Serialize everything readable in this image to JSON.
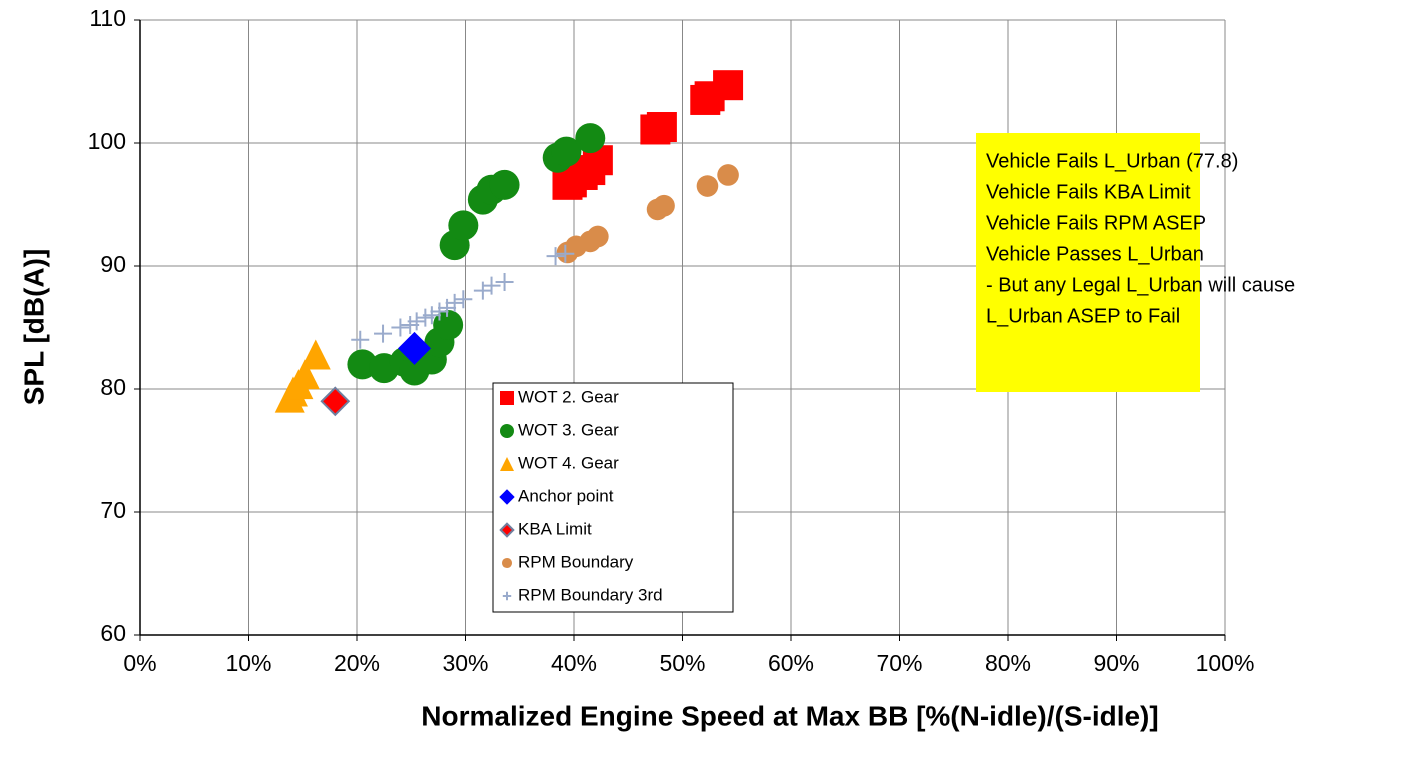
{
  "chart_data": {
    "type": "scatter",
    "xlabel": "Normalized Engine Speed at Max BB [%(N-idle)/(S-idle)]",
    "ylabel": "SPL [dB(A)]",
    "xlim": [
      0,
      100
    ],
    "ylim": [
      60,
      110
    ],
    "xticks": [
      {
        "value": 0,
        "label": "0%"
      },
      {
        "value": 10,
        "label": "10%"
      },
      {
        "value": 20,
        "label": "20%"
      },
      {
        "value": 30,
        "label": "30%"
      },
      {
        "value": 40,
        "label": "40%"
      },
      {
        "value": 50,
        "label": "50%"
      },
      {
        "value": 60,
        "label": "60%"
      },
      {
        "value": 70,
        "label": "70%"
      },
      {
        "value": 80,
        "label": "80%"
      },
      {
        "value": 90,
        "label": "90%"
      },
      {
        "value": 100,
        "label": "100%"
      }
    ],
    "yticks": [
      60,
      70,
      80,
      90,
      100,
      110
    ],
    "grid": true,
    "annotation": [
      "Vehicle Fails L_Urban (77.8)",
      "Vehicle Fails KBA Limit",
      "Vehicle Fails RPM ASEP",
      "Vehicle Passes L_Urban",
      "- But any Legal L_Urban will cause",
      "L_Urban ASEP to Fail"
    ],
    "series": [
      {
        "name": "WOT 2. Gear",
        "color": "#ff0000",
        "marker": "square",
        "x": [
          39.4,
          39.8,
          40.8,
          41.5,
          42.2,
          47.5,
          48.1,
          52.1,
          52.5,
          54.2
        ],
        "values": [
          96.6,
          96.8,
          97.4,
          97.8,
          98.6,
          101.1,
          101.3,
          103.5,
          103.8,
          104.7
        ]
      },
      {
        "name": "WOT 3. Gear",
        "color": "#138a13",
        "marker": "circle",
        "x": [
          20.5,
          22.5,
          24.4,
          25.3,
          26.9,
          27.6,
          28.4,
          29.0,
          29.8,
          31.6,
          32.4,
          33.6,
          38.5,
          39.3,
          41.5
        ],
        "values": [
          82.0,
          81.7,
          82.2,
          81.5,
          82.4,
          83.8,
          85.2,
          91.7,
          93.3,
          95.4,
          96.2,
          96.6,
          98.8,
          99.3,
          100.4
        ]
      },
      {
        "name": "WOT 4. Gear",
        "color": "#ffa500",
        "marker": "triangle",
        "x": [
          13.8,
          14.1,
          14.6,
          15.2,
          16.2
        ],
        "values": [
          79.3,
          79.8,
          80.4,
          81.2,
          82.8
        ]
      },
      {
        "name": "Anchor point",
        "color": "#0000ff",
        "marker": "diamond",
        "x": [
          25.3
        ],
        "values": [
          83.3
        ]
      },
      {
        "name": "KBA Limit",
        "color": "#ff0000",
        "marker": "diamond-outline",
        "x": [
          18.0
        ],
        "values": [
          79.0
        ]
      },
      {
        "name": "RPM Boundary",
        "color": "#d98c4a",
        "marker": "circle-small",
        "x": [
          39.4,
          40.2,
          41.5,
          42.2,
          47.7,
          48.3,
          52.3,
          54.2
        ],
        "values": [
          91.1,
          91.6,
          92.0,
          92.4,
          94.6,
          94.9,
          96.5,
          97.4
        ]
      },
      {
        "name": "RPM Boundary 3rd",
        "color": "#9aabcc",
        "marker": "plus",
        "x": [
          20.3,
          22.4,
          24.0,
          24.9,
          25.5,
          26.3,
          26.9,
          27.6,
          28.3,
          29.0,
          29.8,
          31.6,
          32.4,
          33.6,
          38.3,
          39.2
        ],
        "values": [
          84.0,
          84.5,
          85.0,
          85.2,
          85.5,
          85.8,
          86.0,
          86.3,
          86.6,
          87.0,
          87.3,
          88.0,
          88.4,
          88.7,
          90.8,
          91.0
        ]
      }
    ]
  }
}
